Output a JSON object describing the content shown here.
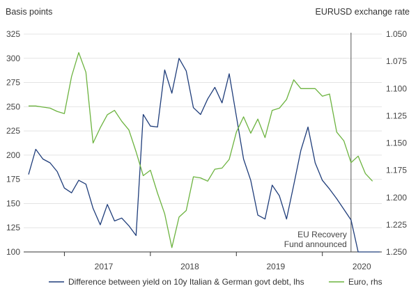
{
  "chart_data": {
    "type": "line",
    "ylabel_left": "Basis points",
    "ylabel_right": "EURUSD exchange rate",
    "ylim_left": [
      100,
      325
    ],
    "ylim_right": [
      1.25,
      1.05
    ],
    "yticks_left": [
      "325",
      "300",
      "275",
      "250",
      "225",
      "200",
      "175",
      "150",
      "125",
      "100"
    ],
    "yticks_right": [
      "1.050",
      "1.075",
      "1.100",
      "1.125",
      "1.150",
      "1.175",
      "1.200",
      "1.225",
      "1.250"
    ],
    "xticks": [
      "2017",
      "2018",
      "2019",
      "2020"
    ],
    "grid": "horizontal",
    "annotation": {
      "line1": "EU Recovery",
      "line2": "Fund announced",
      "date": "2020-05"
    },
    "series": [
      {
        "name": "Difference between yield on 10y Italian & German govt debt, lhs",
        "axis": "left",
        "color": "#1f3d7a",
        "x": [
          "2016-08",
          "2016-09",
          "2016-10",
          "2016-11",
          "2016-12",
          "2017-01",
          "2017-02",
          "2017-03",
          "2017-04",
          "2017-05",
          "2017-06",
          "2017-07",
          "2017-08",
          "2017-09",
          "2017-10",
          "2017-11",
          "2017-12",
          "2018-01",
          "2018-02",
          "2018-03",
          "2018-04",
          "2018-05",
          "2018-06",
          "2018-07",
          "2018-08",
          "2018-09",
          "2018-10",
          "2018-11",
          "2018-12",
          "2019-01",
          "2019-02",
          "2019-03",
          "2019-04",
          "2019-05",
          "2019-06",
          "2019-07",
          "2019-08",
          "2019-09",
          "2019-10",
          "2019-11",
          "2019-12",
          "2020-01",
          "2020-02",
          "2020-03",
          "2020-04",
          "2020-05",
          "2020-06",
          "2020-07",
          "2020-08",
          "2020-09"
        ],
        "values": [
          180,
          206,
          196,
          192,
          183,
          166,
          161,
          174,
          170,
          145,
          128,
          149,
          132,
          135,
          127,
          117,
          242,
          230,
          229,
          288,
          264,
          300,
          287,
          249,
          242,
          258,
          270,
          254,
          284,
          240,
          196,
          174,
          138,
          134,
          169,
          158,
          134,
          169,
          205,
          229,
          192,
          174,
          165,
          155,
          144,
          133,
          100,
          100,
          100,
          100
        ]
      },
      {
        "name": "Euro, rhs",
        "axis": "right",
        "color": "#6cb33f",
        "x": [
          "2016-08",
          "2016-09",
          "2016-10",
          "2016-11",
          "2016-12",
          "2017-01",
          "2017-02",
          "2017-03",
          "2017-04",
          "2017-05",
          "2017-06",
          "2017-07",
          "2017-08",
          "2017-09",
          "2017-10",
          "2017-11",
          "2017-12",
          "2018-01",
          "2018-02",
          "2018-03",
          "2018-04",
          "2018-05",
          "2018-06",
          "2018-07",
          "2018-08",
          "2018-09",
          "2018-10",
          "2018-11",
          "2018-12",
          "2019-01",
          "2019-02",
          "2019-03",
          "2019-04",
          "2019-05",
          "2019-06",
          "2019-07",
          "2019-08",
          "2019-09",
          "2019-10",
          "2019-11",
          "2019-12",
          "2020-01",
          "2020-02",
          "2020-03",
          "2020-04",
          "2020-05",
          "2020-06",
          "2020-07",
          "2020-08"
        ],
        "values": [
          1.116,
          1.116,
          1.117,
          1.118,
          1.121,
          1.123,
          1.089,
          1.067,
          1.085,
          1.15,
          1.136,
          1.124,
          1.12,
          1.13,
          1.138,
          1.158,
          1.18,
          1.175,
          1.196,
          1.215,
          1.246,
          1.218,
          1.212,
          1.181,
          1.182,
          1.185,
          1.174,
          1.173,
          1.165,
          1.14,
          1.126,
          1.141,
          1.128,
          1.145,
          1.12,
          1.118,
          1.11,
          1.092,
          1.1,
          1.1,
          1.1,
          1.107,
          1.105,
          1.14,
          1.148,
          1.168,
          1.162,
          1.178,
          1.185
        ]
      }
    ]
  }
}
